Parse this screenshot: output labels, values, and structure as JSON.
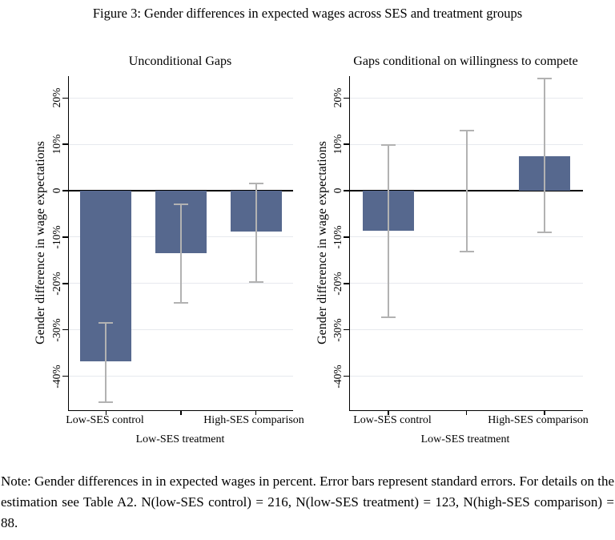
{
  "figure": {
    "title": "Figure 3: Gender differences in expected wages across SES and treatment groups",
    "note": "Note: Gender differences in in expected wages in percent. Error bars represent standard errors. For details on the estimation see Table A2. N(low-SES control) = 216, N(low-SES treatment) = 123, N(high-SES comparison) = 88."
  },
  "colors": {
    "bar": "#56688e",
    "error_bar": "#b2b2b2",
    "grid": "#e7e9ee",
    "axis": "#000000"
  },
  "chart_data": [
    {
      "type": "bar",
      "title": "Unconditional Gaps",
      "ylabel": "Gender difference in wage expectations",
      "xlabel": "",
      "categories": [
        "Low-SES control",
        "Low-SES treatment",
        "High-SES comparison"
      ],
      "values": [
        -36.7,
        -13.5,
        -8.8
      ],
      "error_high": [
        -28.5,
        -2.9,
        1.6
      ],
      "error_low": [
        -45.5,
        -24.1,
        -19.6
      ],
      "yticks": [
        20,
        10,
        0,
        -10,
        -20,
        -30,
        -40
      ],
      "ytick_labels": [
        "20%",
        "10%",
        "0",
        "-10%",
        "-20%",
        "-30%",
        "-40%"
      ],
      "ylim": [
        -47.3,
        24.7
      ],
      "grid": true,
      "legend": "none"
    },
    {
      "type": "bar",
      "title": "Gaps conditional on willingness to compete",
      "ylabel": "Gender difference in wage expectations",
      "xlabel": "",
      "categories": [
        "Low-SES control",
        "Low-SES treatment",
        "High-SES comparison"
      ],
      "values": [
        -8.7,
        0,
        7.5
      ],
      "error_high": [
        9.9,
        13.0,
        24.1
      ],
      "error_low": [
        -27.2,
        -13.1,
        -8.9
      ],
      "yticks": [
        20,
        10,
        0,
        -10,
        -20,
        -30,
        -40
      ],
      "ytick_labels": [
        "20%",
        "10%",
        "0",
        "-10%",
        "-20%",
        "-30%",
        "-40%"
      ],
      "ylim": [
        -47.3,
        24.7
      ],
      "grid": true,
      "legend": "none"
    }
  ]
}
